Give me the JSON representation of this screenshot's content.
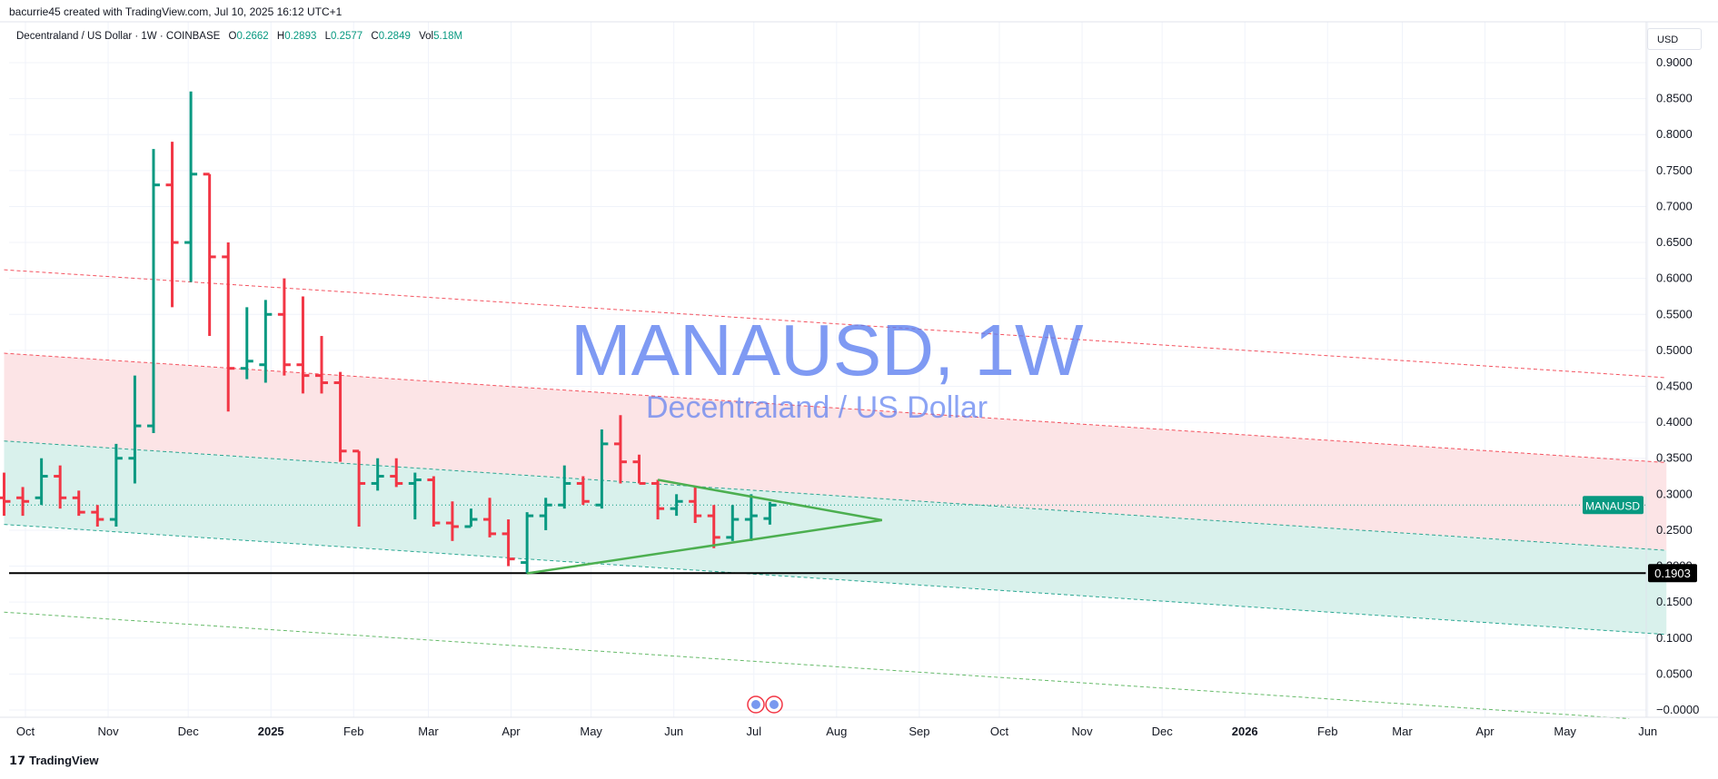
{
  "header": {
    "created_by": "bacurrie45 created with TradingView.com, Jul 10, 2025 16:12 UTC+1"
  },
  "legend": {
    "symbol_desc": "Decentraland / US Dollar · 1W · COINBASE",
    "o_label": "O",
    "o": "0.2662",
    "h_label": "H",
    "h": "0.2893",
    "l_label": "L",
    "l": "0.2577",
    "c_label": "C",
    "c": "0.2849",
    "vol_label": "Vol",
    "vol": "5.18M"
  },
  "watermark": {
    "title": "MANAUSD, 1W",
    "subtitle": "Decentraland / US Dollar"
  },
  "currency_button": "USD",
  "footer": {
    "brand": "TradingView",
    "logo": "tv-logo-icon"
  },
  "colors": {
    "up": "#089981",
    "down": "#f23645",
    "triangle": "#4caf50",
    "upper_band": "#fce4e6",
    "lower_band": "#d9f1ec"
  },
  "chart_data": {
    "type": "ohlc-bar",
    "symbol": "MANAUSD",
    "interval": "1W",
    "y_range": [
      0.0,
      0.9
    ],
    "y_ticks": [
      "0.9000",
      "0.8500",
      "0.8000",
      "0.7500",
      "0.7000",
      "0.6500",
      "0.6000",
      "0.5500",
      "0.5000",
      "0.4500",
      "0.4000",
      "0.3500",
      "0.3000",
      "0.2500",
      "0.2000",
      "0.1500",
      "0.1000",
      "0.0500",
      "−0.0000"
    ],
    "x_ticks": [
      {
        "label": "Oct",
        "date": "2024-10-01"
      },
      {
        "label": "Nov",
        "date": "2024-11-01"
      },
      {
        "label": "Dec",
        "date": "2024-12-01"
      },
      {
        "label": "2025",
        "date": "2025-01-01",
        "bold": true
      },
      {
        "label": "Feb",
        "date": "2025-02-01"
      },
      {
        "label": "Mar",
        "date": "2025-03-01"
      },
      {
        "label": "Apr",
        "date": "2025-04-01"
      },
      {
        "label": "May",
        "date": "2025-05-01"
      },
      {
        "label": "Jun",
        "date": "2025-06-01"
      },
      {
        "label": "Jul",
        "date": "2025-07-01"
      },
      {
        "label": "Aug",
        "date": "2025-08-01"
      },
      {
        "label": "Sep",
        "date": "2025-09-01"
      },
      {
        "label": "Oct",
        "date": "2025-10-01"
      },
      {
        "label": "Nov",
        "date": "2025-11-01"
      },
      {
        "label": "Dec",
        "date": "2025-12-01"
      },
      {
        "label": "2026",
        "date": "2026-01-01",
        "bold": true
      },
      {
        "label": "Feb",
        "date": "2026-02-01"
      },
      {
        "label": "Mar",
        "date": "2026-03-01"
      },
      {
        "label": "Apr",
        "date": "2026-04-01"
      },
      {
        "label": "May",
        "date": "2026-05-01"
      },
      {
        "label": "Jun",
        "date": "2026-06-01"
      }
    ],
    "bars": [
      {
        "d": "2024-09-23",
        "o": 0.295,
        "h": 0.33,
        "l": 0.27,
        "c": 0.29
      },
      {
        "d": "2024-09-30",
        "o": 0.295,
        "h": 0.31,
        "l": 0.27,
        "c": 0.29
      },
      {
        "d": "2024-10-07",
        "o": 0.295,
        "h": 0.35,
        "l": 0.285,
        "c": 0.325
      },
      {
        "d": "2024-10-14",
        "o": 0.325,
        "h": 0.34,
        "l": 0.28,
        "c": 0.295
      },
      {
        "d": "2024-10-21",
        "o": 0.295,
        "h": 0.305,
        "l": 0.27,
        "c": 0.275
      },
      {
        "d": "2024-10-28",
        "o": 0.275,
        "h": 0.285,
        "l": 0.255,
        "c": 0.265
      },
      {
        "d": "2024-11-04",
        "o": 0.265,
        "h": 0.37,
        "l": 0.255,
        "c": 0.35
      },
      {
        "d": "2024-11-11",
        "o": 0.35,
        "h": 0.465,
        "l": 0.315,
        "c": 0.395
      },
      {
        "d": "2024-11-18",
        "o": 0.395,
        "h": 0.78,
        "l": 0.385,
        "c": 0.73
      },
      {
        "d": "2024-11-25",
        "o": 0.73,
        "h": 0.79,
        "l": 0.56,
        "c": 0.65
      },
      {
        "d": "2024-12-02",
        "o": 0.65,
        "h": 0.86,
        "l": 0.595,
        "c": 0.745
      },
      {
        "d": "2024-12-09",
        "o": 0.745,
        "h": 0.745,
        "l": 0.52,
        "c": 0.63
      },
      {
        "d": "2024-12-16",
        "o": 0.63,
        "h": 0.65,
        "l": 0.415,
        "c": 0.475
      },
      {
        "d": "2024-12-23",
        "o": 0.475,
        "h": 0.56,
        "l": 0.46,
        "c": 0.485
      },
      {
        "d": "2024-12-30",
        "o": 0.48,
        "h": 0.57,
        "l": 0.455,
        "c": 0.55
      },
      {
        "d": "2025-01-06",
        "o": 0.55,
        "h": 0.6,
        "l": 0.465,
        "c": 0.48
      },
      {
        "d": "2025-01-13",
        "o": 0.48,
        "h": 0.575,
        "l": 0.44,
        "c": 0.465
      },
      {
        "d": "2025-01-20",
        "o": 0.465,
        "h": 0.52,
        "l": 0.44,
        "c": 0.455
      },
      {
        "d": "2025-01-27",
        "o": 0.455,
        "h": 0.47,
        "l": 0.345,
        "c": 0.36
      },
      {
        "d": "2025-02-03",
        "o": 0.36,
        "h": 0.36,
        "l": 0.255,
        "c": 0.315
      },
      {
        "d": "2025-02-10",
        "o": 0.315,
        "h": 0.35,
        "l": 0.305,
        "c": 0.325
      },
      {
        "d": "2025-02-17",
        "o": 0.325,
        "h": 0.35,
        "l": 0.31,
        "c": 0.315
      },
      {
        "d": "2025-02-24",
        "o": 0.315,
        "h": 0.33,
        "l": 0.265,
        "c": 0.32
      },
      {
        "d": "2025-03-03",
        "o": 0.32,
        "h": 0.325,
        "l": 0.255,
        "c": 0.26
      },
      {
        "d": "2025-03-10",
        "o": 0.26,
        "h": 0.29,
        "l": 0.235,
        "c": 0.255
      },
      {
        "d": "2025-03-17",
        "o": 0.255,
        "h": 0.28,
        "l": 0.255,
        "c": 0.265
      },
      {
        "d": "2025-03-24",
        "o": 0.265,
        "h": 0.295,
        "l": 0.24,
        "c": 0.245
      },
      {
        "d": "2025-03-31",
        "o": 0.245,
        "h": 0.265,
        "l": 0.2,
        "c": 0.21
      },
      {
        "d": "2025-04-07",
        "o": 0.205,
        "h": 0.275,
        "l": 0.19,
        "c": 0.27
      },
      {
        "d": "2025-04-14",
        "o": 0.27,
        "h": 0.295,
        "l": 0.25,
        "c": 0.285
      },
      {
        "d": "2025-04-21",
        "o": 0.285,
        "h": 0.34,
        "l": 0.28,
        "c": 0.315
      },
      {
        "d": "2025-04-28",
        "o": 0.315,
        "h": 0.325,
        "l": 0.285,
        "c": 0.29
      },
      {
        "d": "2025-05-05",
        "o": 0.285,
        "h": 0.39,
        "l": 0.28,
        "c": 0.37
      },
      {
        "d": "2025-05-12",
        "o": 0.37,
        "h": 0.41,
        "l": 0.315,
        "c": 0.345
      },
      {
        "d": "2025-05-19",
        "o": 0.345,
        "h": 0.355,
        "l": 0.315,
        "c": 0.315
      },
      {
        "d": "2025-05-26",
        "o": 0.315,
        "h": 0.32,
        "l": 0.265,
        "c": 0.28
      },
      {
        "d": "2025-06-02",
        "o": 0.28,
        "h": 0.3,
        "l": 0.27,
        "c": 0.29
      },
      {
        "d": "2025-06-09",
        "o": 0.29,
        "h": 0.31,
        "l": 0.26,
        "c": 0.27
      },
      {
        "d": "2025-06-16",
        "o": 0.27,
        "h": 0.285,
        "l": 0.225,
        "c": 0.24
      },
      {
        "d": "2025-06-23",
        "o": 0.24,
        "h": 0.285,
        "l": 0.235,
        "c": 0.265
      },
      {
        "d": "2025-06-30",
        "o": 0.265,
        "h": 0.3,
        "l": 0.235,
        "c": 0.27
      },
      {
        "d": "2025-07-07",
        "o": 0.2662,
        "h": 0.2893,
        "l": 0.2577,
        "c": 0.2849
      }
    ],
    "channel_lines": [
      {
        "color": "#f23645",
        "from": {
          "d": "2024-09-23",
          "y": 0.612
        },
        "to": {
          "d": "2026-06-08",
          "y": 0.462
        }
      },
      {
        "color": "#f23645",
        "from": {
          "d": "2024-09-23",
          "y": 0.496
        },
        "to": {
          "d": "2026-06-08",
          "y": 0.344
        }
      },
      {
        "color": "#089981",
        "from": {
          "d": "2024-09-23",
          "y": 0.374
        },
        "to": {
          "d": "2026-06-08",
          "y": 0.222
        }
      },
      {
        "color": "#089981",
        "from": {
          "d": "2024-09-23",
          "y": 0.258
        },
        "to": {
          "d": "2026-06-08",
          "y": 0.105
        }
      },
      {
        "color": "#4caf50",
        "from": {
          "d": "2024-09-23",
          "y": 0.136
        },
        "to": {
          "d": "2026-05-25",
          "y": -0.012
        }
      }
    ],
    "triangle": [
      {
        "d": "2025-04-07",
        "y": 0.19
      },
      {
        "d": "2025-05-26",
        "y": 0.32
      },
      {
        "d": "2025-08-18",
        "y": 0.264
      }
    ],
    "horizontal_line": {
      "y": 0.1903,
      "label": "0.1903"
    },
    "last_price": {
      "y": 0.2849,
      "label": "MANAUSD"
    }
  }
}
